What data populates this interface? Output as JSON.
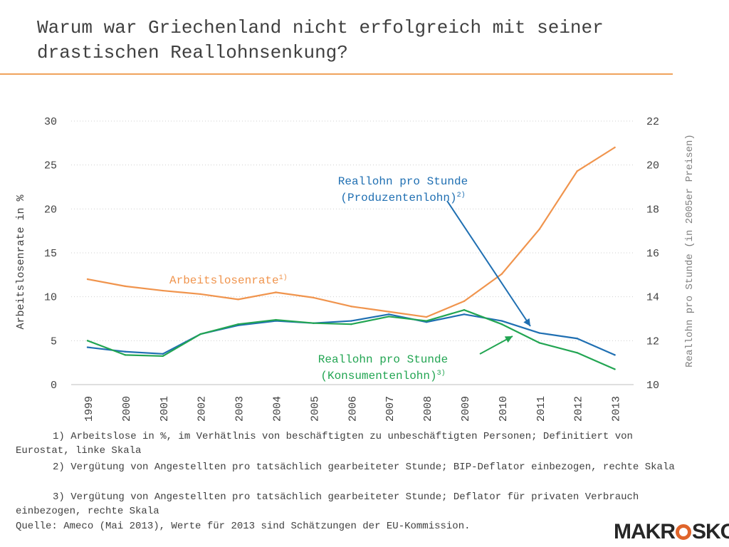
{
  "slide": {
    "title": "Warum war Griechenland nicht erfolgreich mit seiner drastischen Reallohnsenkung?",
    "rule_color": "#f0a35c"
  },
  "chart_data": {
    "type": "line",
    "x": [
      "1999",
      "2000",
      "2001",
      "2002",
      "2003",
      "2004",
      "2005",
      "2006",
      "2007",
      "2008",
      "2009",
      "2010",
      "2011",
      "2012",
      "2013"
    ],
    "ylabel_left": "Arbeitslosenrate in %",
    "ylabel_right": "Reallohn pro Stunde (in 2005er Preisen)",
    "ylim_left": [
      0,
      30
    ],
    "ylim_right": [
      10,
      22
    ],
    "yticks_left": [
      0,
      5,
      10,
      15,
      20,
      25,
      30
    ],
    "yticks_right": [
      10,
      12,
      14,
      16,
      18,
      20,
      22
    ],
    "grid": "horizontal dotted",
    "series": [
      {
        "name": "Arbeitslosenrate",
        "sup": "1)",
        "axis": "left",
        "color": "#f0944d",
        "values": [
          12.0,
          11.2,
          10.7,
          10.3,
          9.7,
          10.5,
          9.9,
          8.9,
          8.3,
          7.7,
          9.5,
          12.6,
          17.7,
          24.3,
          27.0
        ]
      },
      {
        "name": "Reallohn pro Stunde (Produzentenlohn)",
        "label_lines": [
          "Reallohn pro Stunde",
          "(Produzentenlohn)"
        ],
        "sup": "2)",
        "axis": "right",
        "color": "#1f6fb2",
        "values": [
          11.7,
          11.5,
          11.4,
          12.3,
          12.7,
          12.9,
          12.8,
          12.9,
          13.2,
          12.85,
          13.2,
          12.9,
          12.35,
          12.1,
          11.35
        ]
      },
      {
        "name": "Reallohn pro Stunde (Konsumentenlohn)",
        "label_lines": [
          "Reallohn pro Stunde",
          "(Konsumentenlohn)"
        ],
        "sup": "3)",
        "axis": "right",
        "color": "#22a552",
        "values": [
          12.0,
          11.35,
          11.3,
          12.3,
          12.75,
          12.95,
          12.8,
          12.75,
          13.1,
          12.9,
          13.4,
          12.75,
          11.9,
          11.45,
          10.7
        ]
      }
    ]
  },
  "footnotes": [
    "1) Arbeitslose in %, im Verhätlnis von beschäftigten zu unbeschäftigten Personen; Definitiert von Eurostat, linke Skala",
    "2) Vergütung von Angestellten pro tatsächlich gearbeiteter Stunde; BIP-Deflator einbezogen, rechte Skala",
    "3) Vergütung von Angestellten pro tatsächlich gearbeiteter Stunde; Deflator für privaten Verbrauch einbezogen, rechte Skala"
  ],
  "source": "Quelle: Ameco (Mai 2013), Werte für 2013 sind Schätzungen der EU-Kommission.",
  "logo": {
    "part1": "MAKR",
    "part2": "SKOP",
    "ring_color": "#e0652b"
  }
}
